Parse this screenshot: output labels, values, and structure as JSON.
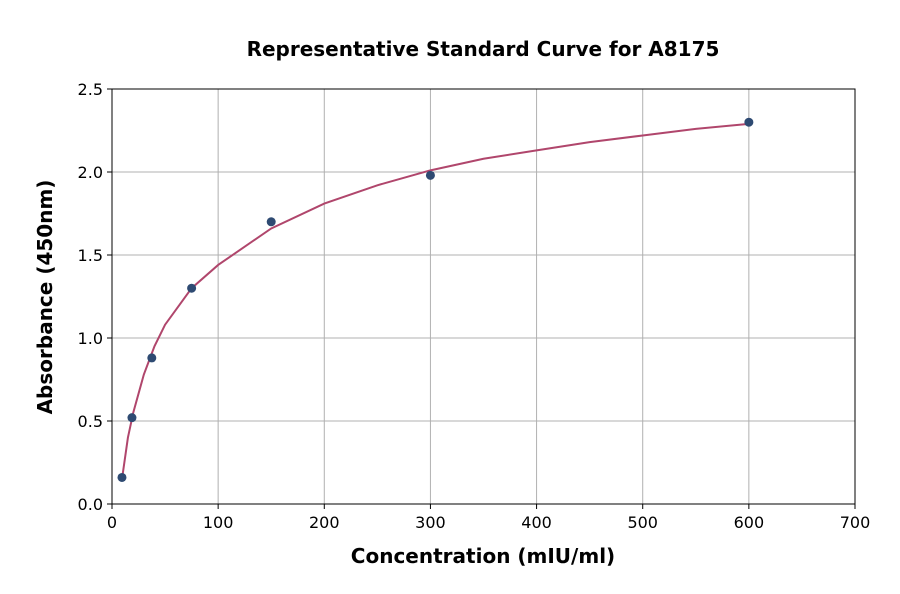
{
  "chart_data": {
    "type": "scatter",
    "title": "Representative Standard Curve for A8175",
    "xlabel": "Concentration (mIU/ml)",
    "ylabel": "Absorbance (450nm)",
    "xlim": [
      0,
      700
    ],
    "ylim": [
      0,
      2.5
    ],
    "x_ticks": [
      0,
      100,
      200,
      300,
      400,
      500,
      600,
      700
    ],
    "x_tick_labels": [
      "0",
      "100",
      "200",
      "300",
      "400",
      "500",
      "600",
      "700"
    ],
    "y_ticks": [
      0,
      0.5,
      1.0,
      1.5,
      2.0,
      2.5
    ],
    "y_tick_labels": [
      "0.0",
      "0.5",
      "1.0",
      "1.5",
      "2.0",
      "2.5"
    ],
    "grid": true,
    "series": [
      {
        "type": "scatter",
        "x": [
          9.4,
          18.8,
          37.5,
          75,
          150,
          300,
          600
        ],
        "y": [
          0.16,
          0.52,
          0.88,
          1.3,
          1.7,
          1.98,
          2.3
        ]
      },
      {
        "type": "line",
        "x": [
          9.4,
          15,
          20,
          30,
          40,
          50,
          75,
          100,
          150,
          200,
          250,
          300,
          350,
          400,
          450,
          500,
          550,
          600
        ],
        "y": [
          0.15,
          0.4,
          0.55,
          0.78,
          0.95,
          1.08,
          1.3,
          1.44,
          1.66,
          1.81,
          1.92,
          2.01,
          2.08,
          2.13,
          2.18,
          2.22,
          2.26,
          2.29
        ]
      }
    ]
  },
  "colors": {
    "marker": "#2e4a72",
    "curve": "#b0466c"
  }
}
